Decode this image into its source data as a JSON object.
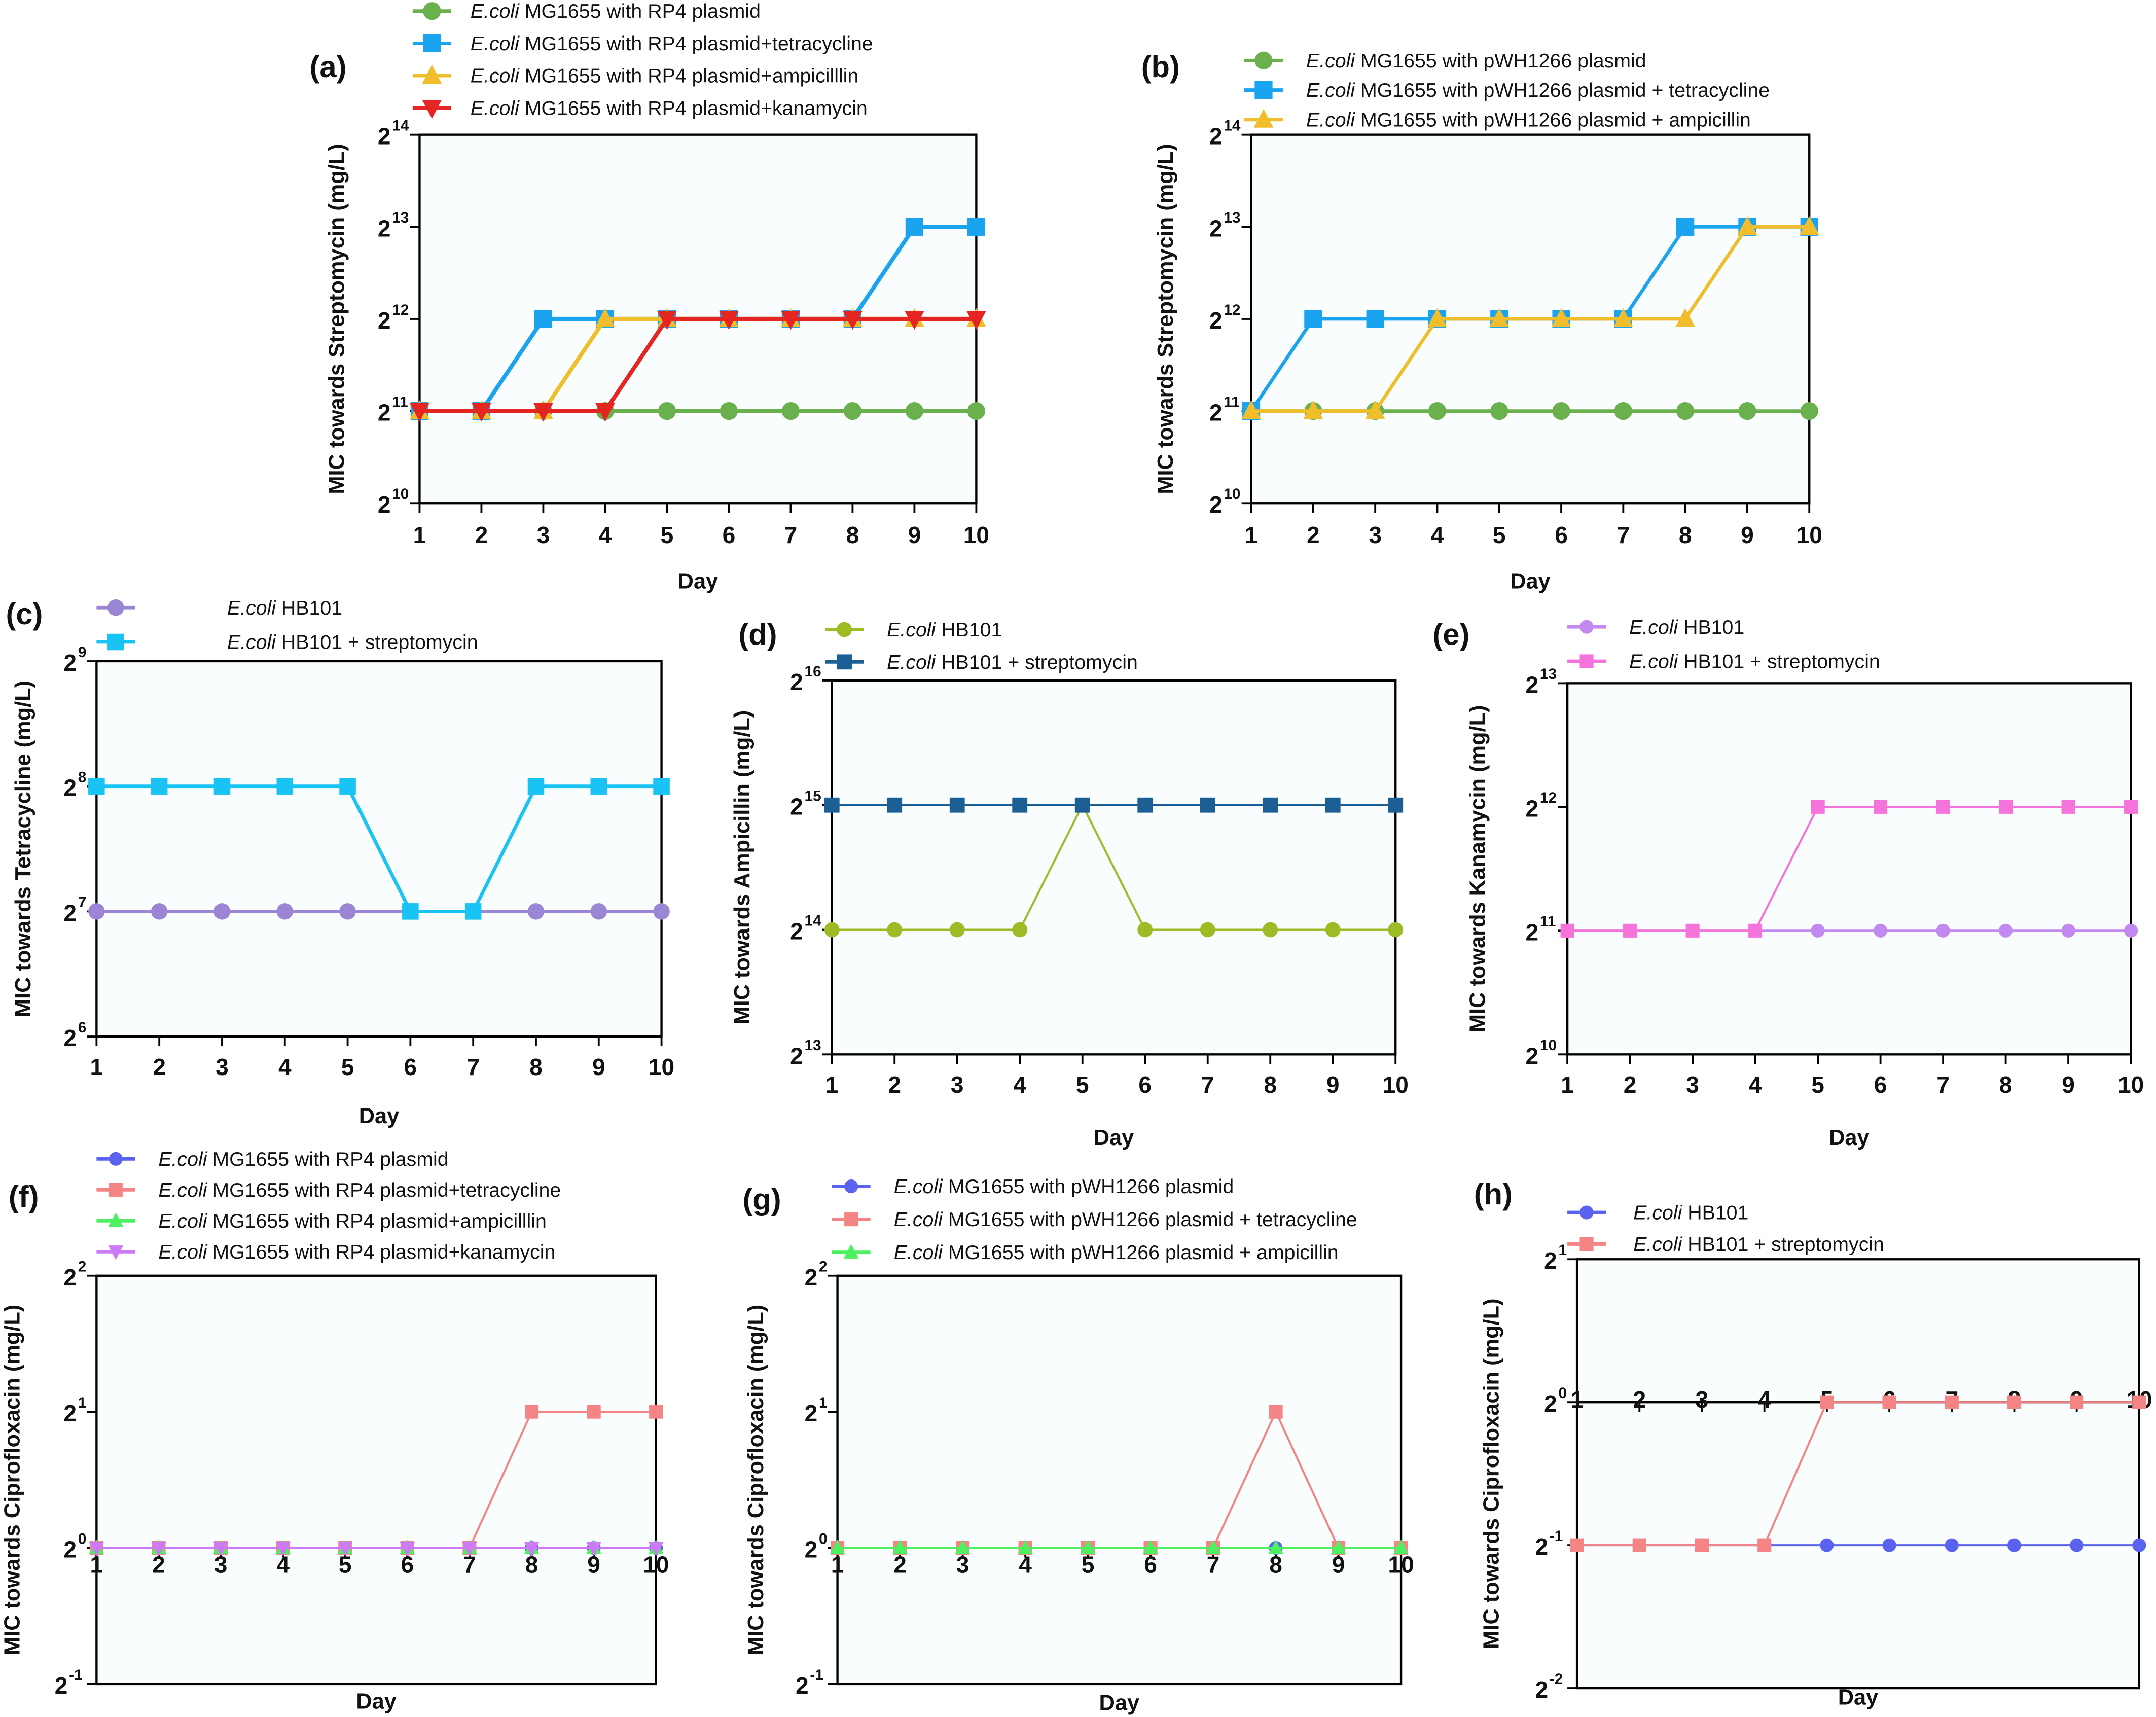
{
  "chart_data": [
    {
      "panel": "(a)",
      "type": "line",
      "title": "",
      "xlabel": "Day",
      "ylabel": "MIC towards Streptomycin (mg/L)",
      "x": [
        1,
        2,
        3,
        4,
        5,
        6,
        7,
        8,
        9,
        10
      ],
      "yscale": "log2",
      "ylim_exp": [
        10,
        14
      ],
      "ytick_exps": [
        10,
        11,
        12,
        13,
        14
      ],
      "grid": false,
      "legend_position": "top",
      "series": [
        {
          "name_italic": "E.coli",
          "name": " MG1655 with RP4 plasmid",
          "color": "#6ab04c",
          "marker": "circle",
          "values_exp": [
            11,
            11,
            11,
            11,
            11,
            11,
            11,
            11,
            11,
            11
          ]
        },
        {
          "name_italic": "E.coli",
          "name": " MG1655 with RP4 plasmid+tetracycline",
          "color": "#1aa3ef",
          "marker": "square",
          "values_exp": [
            11,
            11,
            12,
            12,
            12,
            12,
            12,
            12,
            13,
            13
          ]
        },
        {
          "name_italic": "E.coli",
          "name": " MG1655 with RP4 plasmid+ampicilllin",
          "color": "#f0bd2c",
          "marker": "triangle-up",
          "values_exp": [
            11,
            11,
            11,
            12,
            12,
            12,
            12,
            12,
            12,
            12
          ]
        },
        {
          "name_italic": "E.coli",
          "name": " MG1655 with RP4 plasmid+kanamycin",
          "color": "#e52521",
          "marker": "triangle-down",
          "values_exp": [
            11,
            11,
            11,
            11,
            12,
            12,
            12,
            12,
            12,
            12
          ]
        }
      ]
    },
    {
      "panel": "(b)",
      "type": "line",
      "xlabel": "Day",
      "ylabel": "MIC towards Streptomycin (mg/L)",
      "x": [
        1,
        2,
        3,
        4,
        5,
        6,
        7,
        8,
        9,
        10
      ],
      "yscale": "log2",
      "ylim_exp": [
        10,
        14
      ],
      "ytick_exps": [
        10,
        11,
        12,
        13,
        14
      ],
      "grid": false,
      "legend_position": "top",
      "series": [
        {
          "name_italic": "E.coli",
          "name": " MG1655 with pWH1266 plasmid",
          "color": "#6ab04c",
          "marker": "circle",
          "values_exp": [
            11,
            11,
            11,
            11,
            11,
            11,
            11,
            11,
            11,
            11
          ]
        },
        {
          "name_italic": "E.coli",
          "name": " MG1655 with pWH1266 plasmid + tetracycline",
          "color": "#1aa3ef",
          "marker": "square",
          "values_exp": [
            11,
            12,
            12,
            12,
            12,
            12,
            12,
            13,
            13,
            13
          ]
        },
        {
          "name_italic": "E.coli",
          "name": " MG1655 with pWH1266 plasmid + ampicillin",
          "color": "#f0bd2c",
          "marker": "triangle-up",
          "values_exp": [
            11,
            11,
            11,
            12,
            12,
            12,
            12,
            12,
            13,
            13
          ]
        }
      ]
    },
    {
      "panel": "(c)",
      "type": "line",
      "xlabel": "Day",
      "ylabel": "MIC towards Tetracycline (mg/L)",
      "x": [
        1,
        2,
        3,
        4,
        5,
        6,
        7,
        8,
        9,
        10
      ],
      "yscale": "log2",
      "ylim_exp": [
        6,
        9
      ],
      "ytick_exps": [
        6,
        7,
        8,
        9
      ],
      "grid": false,
      "legend_position": "top",
      "series": [
        {
          "name_italic": "E.coli",
          "name": " HB101",
          "color": "#9b86d6",
          "marker": "circle",
          "values_exp": [
            7,
            7,
            7,
            7,
            7,
            7,
            7,
            7,
            7,
            7
          ]
        },
        {
          "name_italic": "E.coli",
          "name": " HB101 + streptomycin",
          "color": "#19c3f3",
          "marker": "square",
          "values_exp": [
            8,
            8,
            8,
            8,
            8,
            7,
            7,
            8,
            8,
            8
          ]
        }
      ]
    },
    {
      "panel": "(d)",
      "type": "line",
      "xlabel": "Day",
      "ylabel": "MIC towards Ampicillin (mg/L)",
      "x": [
        1,
        2,
        3,
        4,
        5,
        6,
        7,
        8,
        9,
        10
      ],
      "yscale": "log2",
      "ylim_exp": [
        13,
        16
      ],
      "ytick_exps": [
        13,
        14,
        15,
        16
      ],
      "grid": false,
      "legend_position": "top",
      "series": [
        {
          "name_italic": "E.coli",
          "name": " HB101",
          "color": "#9cbb24",
          "marker": "circle",
          "values_exp": [
            14,
            14,
            14,
            14,
            15,
            14,
            14,
            14,
            14,
            14
          ]
        },
        {
          "name_italic": "E.coli",
          "name": " HB101 + streptomycin",
          "color": "#1c5f94",
          "marker": "square",
          "values_exp": [
            15,
            15,
            15,
            15,
            15,
            15,
            15,
            15,
            15,
            15
          ]
        }
      ]
    },
    {
      "panel": "(e)",
      "type": "line",
      "xlabel": "Day",
      "ylabel": "MIC towards Kanamycin (mg/L)",
      "x": [
        1,
        2,
        3,
        4,
        5,
        6,
        7,
        8,
        9,
        10
      ],
      "yscale": "log2",
      "ylim_exp": [
        10,
        13
      ],
      "ytick_exps": [
        10,
        11,
        12,
        13
      ],
      "grid": false,
      "legend_position": "top",
      "series": [
        {
          "name_italic": "E.coli",
          "name": " HB101",
          "color": "#c28af0",
          "marker": "circle",
          "values_exp": [
            11,
            11,
            11,
            11,
            11,
            11,
            11,
            11,
            11,
            11
          ]
        },
        {
          "name_italic": "E.coli",
          "name": " HB101 + streptomycin",
          "color": "#f574dc",
          "marker": "square",
          "values_exp": [
            11,
            11,
            11,
            11,
            12,
            12,
            12,
            12,
            12,
            12
          ]
        }
      ]
    },
    {
      "panel": "(f)",
      "type": "line",
      "xlabel": "Day",
      "ylabel": "MIC towards Ciprofloxacin (mg/L)",
      "x": [
        1,
        2,
        3,
        4,
        5,
        6,
        7,
        8,
        9,
        10
      ],
      "yscale": "log2",
      "ylim_exp": [
        -1,
        2
      ],
      "ytick_exps": [
        -1,
        0,
        1,
        2
      ],
      "xaxis_at_exp": 0,
      "grid": false,
      "legend_position": "top",
      "series": [
        {
          "name_italic": "E.coli",
          "name": " MG1655 with RP4 plasmid",
          "color": "#5b62f0",
          "marker": "circle",
          "values_exp": [
            0,
            0,
            0,
            0,
            0,
            0,
            0,
            0,
            0,
            0
          ]
        },
        {
          "name_italic": "E.coli",
          "name": " MG1655 with RP4 plasmid+tetracycline",
          "color": "#f58585",
          "marker": "square",
          "values_exp": [
            0,
            0,
            0,
            0,
            0,
            0,
            0,
            1,
            1,
            1
          ]
        },
        {
          "name_italic": "E.coli",
          "name": " MG1655 with RP4 plasmid+ampicilllin",
          "color": "#4cf060",
          "marker": "triangle-up",
          "values_exp": [
            0,
            0,
            0,
            0,
            0,
            0,
            0,
            0,
            0,
            0
          ]
        },
        {
          "name_italic": "E.coli",
          "name": " MG1655 with RP4 plasmid+kanamycin",
          "color": "#cc7af5",
          "marker": "triangle-down",
          "values_exp": [
            0,
            0,
            0,
            0,
            0,
            0,
            0,
            0,
            0,
            0
          ]
        }
      ]
    },
    {
      "panel": "(g)",
      "type": "line",
      "xlabel": "Day",
      "ylabel": "MIC towards Ciprofloxacin (mg/L)",
      "x": [
        1,
        2,
        3,
        4,
        5,
        6,
        7,
        8,
        9,
        10
      ],
      "yscale": "log2",
      "ylim_exp": [
        -1,
        2
      ],
      "ytick_exps": [
        -1,
        0,
        1,
        2
      ],
      "xaxis_at_exp": 0,
      "grid": false,
      "legend_position": "top",
      "series": [
        {
          "name_italic": "E.coli",
          "name": " MG1655 with pWH1266 plasmid",
          "color": "#5b62f0",
          "marker": "circle",
          "values_exp": [
            0,
            0,
            0,
            0,
            0,
            0,
            0,
            0,
            0,
            0
          ]
        },
        {
          "name_italic": "E.coli",
          "name": " MG1655 with pWH1266 plasmid + tetracycline",
          "color": "#f58585",
          "marker": "square",
          "values_exp": [
            0,
            0,
            0,
            0,
            0,
            0,
            0,
            1,
            0,
            0
          ]
        },
        {
          "name_italic": "E.coli",
          "name": " MG1655 with pWH1266 plasmid + ampicillin",
          "color": "#4cf060",
          "marker": "triangle-up",
          "values_exp": [
            0,
            0,
            0,
            0,
            0,
            0,
            0,
            0,
            0,
            0
          ]
        }
      ]
    },
    {
      "panel": "(h)",
      "type": "line",
      "xlabel": "Day",
      "ylabel": "MIC towards Ciprofloxacin (mg/L)",
      "x": [
        1,
        2,
        3,
        4,
        5,
        6,
        7,
        8,
        9,
        10
      ],
      "yscale": "log2",
      "ylim_exp": [
        -2,
        1
      ],
      "ytick_exps": [
        -2,
        -1,
        0,
        1
      ],
      "xaxis_at_exp": 0,
      "grid": false,
      "legend_position": "top",
      "series": [
        {
          "name_italic": "E.coli",
          "name": " HB101",
          "color": "#5b62f0",
          "marker": "circle",
          "values_exp": [
            -1,
            -1,
            -1,
            -1,
            -1,
            -1,
            -1,
            -1,
            -1,
            -1
          ]
        },
        {
          "name_italic": "E.coli",
          "name": " HB101 + streptomycin",
          "color": "#f58585",
          "marker": "square",
          "values_exp": [
            -1,
            -1,
            -1,
            -1,
            0,
            0,
            0,
            0,
            0,
            0
          ]
        }
      ]
    }
  ]
}
